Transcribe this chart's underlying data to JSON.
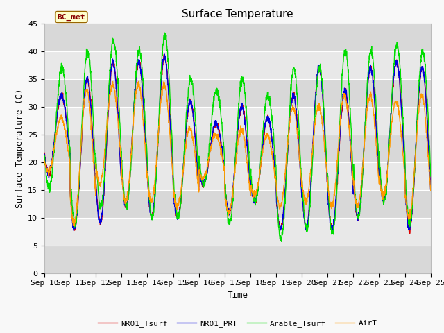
{
  "title": "Surface Temperature",
  "xlabel": "Time",
  "ylabel": "Surface Temperature (C)",
  "ylim": [
    0,
    45
  ],
  "annotation": "BC_met",
  "series_labels": [
    "NR01_Tsurf",
    "NR01_PRT",
    "Arable_Tsurf",
    "AirT"
  ],
  "series_colors": [
    "#dd0000",
    "#0000dd",
    "#00dd00",
    "#ff9900"
  ],
  "background_color": "#f0f0f0",
  "plot_bg_color": "#e8e8e8",
  "x_tick_labels": [
    "Sep 10",
    "Sep 11",
    "Sep 12",
    "Sep 13",
    "Sep 14",
    "Sep 15",
    "Sep 16",
    "Sep 17",
    "Sep 18",
    "Sep 19",
    "Sep 20",
    "Sep 21",
    "Sep 22",
    "Sep 23",
    "Sep 24",
    "Sep 25"
  ],
  "n_days": 15,
  "pts_per_day": 144,
  "day_peaks": [
    32,
    35,
    38,
    38,
    39,
    31,
    27,
    30,
    28,
    32,
    37,
    33,
    37,
    38,
    37
  ],
  "night_troughs": [
    18,
    8,
    9,
    12,
    10,
    10,
    16,
    11,
    13,
    8,
    8,
    8,
    10,
    13,
    8
  ],
  "arable_peaks": [
    37,
    40,
    42,
    40,
    43,
    35,
    33,
    35,
    32,
    37,
    37,
    40,
    40,
    41,
    40
  ],
  "arable_troughs": [
    15,
    9,
    12,
    12,
    10,
    10,
    16,
    9,
    13,
    6,
    8,
    7,
    10,
    13,
    9
  ],
  "air_peaks": [
    28,
    33,
    34,
    34,
    34,
    26,
    25,
    26,
    25,
    30,
    30,
    32,
    32,
    31,
    32
  ],
  "air_troughs": [
    18,
    9,
    16,
    13,
    13,
    12,
    17,
    11,
    14,
    12,
    13,
    12,
    12,
    14,
    10
  ],
  "title_fontsize": 11,
  "label_fontsize": 9,
  "tick_fontsize": 8,
  "legend_fontsize": 8,
  "line_width": 1.0,
  "band_colors": [
    "#d8d8d8",
    "#e8e8e8"
  ]
}
